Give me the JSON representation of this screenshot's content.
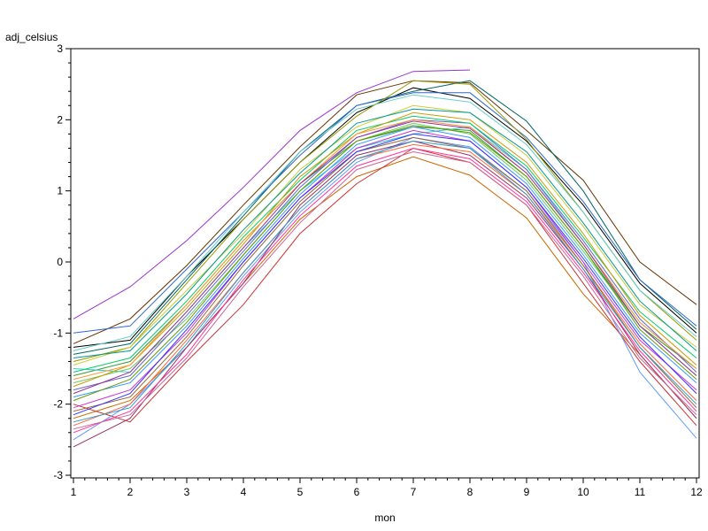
{
  "chart_data": {
    "type": "line",
    "xlabel": "mon",
    "ylabel": "adj_celsius",
    "xlim": [
      1,
      12
    ],
    "ylim": [
      -3,
      3
    ],
    "xticks": [
      1,
      2,
      3,
      4,
      5,
      6,
      7,
      8,
      9,
      10,
      11,
      12
    ],
    "yticks": [
      -3,
      -2,
      -1,
      0,
      1,
      2,
      3
    ],
    "grid": false,
    "legend": "none",
    "x": [
      1,
      2,
      3,
      4,
      5,
      6,
      7,
      8,
      9,
      10,
      11,
      12
    ],
    "series": [
      {
        "color": "#9933cc",
        "values": [
          -0.8,
          -0.35,
          0.3,
          1.05,
          1.85,
          2.38,
          2.68,
          2.7,
          null,
          null,
          null,
          null
        ]
      },
      {
        "color": "#663300",
        "values": [
          -1.15,
          -0.8,
          -0.05,
          0.8,
          1.62,
          2.35,
          2.55,
          2.52,
          1.85,
          1.15,
          0.0,
          -0.6
        ]
      },
      {
        "color": "#000000",
        "values": [
          -1.2,
          -1.1,
          -0.2,
          0.6,
          1.4,
          2.1,
          2.45,
          2.3,
          1.7,
          0.8,
          -0.3,
          -1.0
        ]
      },
      {
        "color": "#006666",
        "values": [
          -1.3,
          -1.15,
          -0.25,
          0.65,
          1.55,
          2.2,
          2.4,
          2.55,
          1.98,
          1.0,
          -0.25,
          -0.95
        ]
      },
      {
        "color": "#3366cc",
        "values": [
          -1.0,
          -0.9,
          -0.1,
          0.7,
          1.5,
          2.2,
          2.38,
          2.38,
          1.75,
          0.85,
          -0.25,
          -0.9
        ]
      },
      {
        "color": "#999900",
        "values": [
          -1.4,
          -1.2,
          -0.3,
          0.6,
          1.4,
          2.05,
          2.55,
          2.5,
          1.72,
          0.7,
          -0.4,
          -1.1
        ]
      },
      {
        "color": "#cc6600",
        "values": [
          -2.2,
          -1.95,
          -1.2,
          -0.3,
          0.6,
          1.2,
          1.48,
          1.22,
          0.62,
          -0.45,
          -1.3,
          -2.2
        ]
      },
      {
        "color": "#cc3333",
        "values": [
          -2.0,
          -2.25,
          -1.4,
          -0.6,
          0.4,
          1.1,
          1.6,
          1.4,
          0.8,
          -0.3,
          -1.4,
          -2.3
        ]
      },
      {
        "color": "#339933",
        "values": [
          -1.6,
          -1.4,
          -0.6,
          0.3,
          1.1,
          1.7,
          1.9,
          1.85,
          1.2,
          0.2,
          -0.9,
          -1.5
        ]
      },
      {
        "color": "#6699ff",
        "values": [
          -2.5,
          -2.0,
          -1.2,
          -0.2,
          0.7,
          1.4,
          1.75,
          1.62,
          1.0,
          0.0,
          -1.55,
          -2.48
        ]
      },
      {
        "color": "#993366",
        "values": [
          -2.6,
          -2.2,
          -1.2,
          -0.3,
          0.8,
          1.5,
          1.7,
          1.5,
          0.9,
          -0.1,
          -1.3,
          -2.2
        ]
      },
      {
        "color": "#33cccc",
        "values": [
          -1.5,
          -1.55,
          -0.7,
          0.2,
          1.0,
          1.6,
          1.8,
          1.9,
          1.3,
          0.25,
          -0.85,
          -1.5
        ]
      },
      {
        "color": "#cccc33",
        "values": [
          -1.45,
          -1.2,
          -0.4,
          0.4,
          1.3,
          1.9,
          2.2,
          2.1,
          1.5,
          0.5,
          -0.6,
          -1.2
        ]
      },
      {
        "color": "#66cc66",
        "values": [
          -1.7,
          -1.5,
          -0.8,
          0.1,
          1.0,
          1.7,
          1.95,
          1.8,
          1.15,
          0.15,
          -0.9,
          -1.6
        ]
      },
      {
        "color": "#cc33cc",
        "values": [
          -2.05,
          -1.8,
          -1.0,
          0.0,
          0.9,
          1.6,
          1.85,
          1.7,
          1.05,
          0.0,
          -1.1,
          -1.8
        ]
      },
      {
        "color": "#3399ff",
        "values": [
          -1.9,
          -1.7,
          -0.9,
          0.05,
          0.95,
          1.65,
          1.9,
          1.75,
          1.1,
          0.1,
          -1.0,
          -1.7
        ]
      },
      {
        "color": "#ff6633",
        "values": [
          -2.3,
          -2.0,
          -1.1,
          -0.15,
          0.75,
          1.45,
          1.65,
          1.55,
          0.95,
          -0.05,
          -1.15,
          -1.95
        ]
      },
      {
        "color": "#009999",
        "values": [
          -1.35,
          -1.25,
          -0.45,
          0.45,
          1.25,
          1.95,
          2.15,
          2.1,
          1.55,
          0.55,
          -0.55,
          -1.25
        ]
      },
      {
        "color": "#996633",
        "values": [
          -2.1,
          -1.9,
          -1.05,
          -0.05,
          0.85,
          1.55,
          1.75,
          1.6,
          1.0,
          -0.05,
          -1.2,
          -2.05
        ]
      },
      {
        "color": "#6666cc",
        "values": [
          -1.8,
          -1.6,
          -0.75,
          0.15,
          1.05,
          1.75,
          2.0,
          1.95,
          1.3,
          0.3,
          -0.8,
          -1.55
        ]
      },
      {
        "color": "#ff3399",
        "values": [
          -2.4,
          -2.1,
          -1.3,
          -0.25,
          0.65,
          1.35,
          1.6,
          1.45,
          0.85,
          -0.15,
          -1.25,
          -2.1
        ]
      },
      {
        "color": "#00cc66",
        "values": [
          -1.55,
          -1.35,
          -0.55,
          0.35,
          1.15,
          1.85,
          2.05,
          1.95,
          1.35,
          0.35,
          -0.7,
          -1.35
        ]
      },
      {
        "color": "#cc9900",
        "values": [
          -1.75,
          -1.45,
          -0.65,
          0.25,
          1.2,
          1.8,
          2.1,
          2.0,
          1.4,
          0.4,
          -0.75,
          -1.45
        ]
      },
      {
        "color": "#3333ff",
        "values": [
          -2.15,
          -1.85,
          -0.95,
          0.0,
          0.9,
          1.55,
          1.8,
          1.7,
          1.05,
          0.05,
          -1.05,
          -1.85
        ]
      },
      {
        "color": "#66cccc",
        "values": [
          -1.25,
          -1.05,
          -0.2,
          0.7,
          1.55,
          2.15,
          2.35,
          2.25,
          1.65,
          0.7,
          -0.4,
          -1.05
        ]
      },
      {
        "color": "#cc6699",
        "values": [
          -2.35,
          -2.15,
          -1.35,
          -0.35,
          0.55,
          1.3,
          1.55,
          1.4,
          0.8,
          -0.2,
          -1.35,
          -2.15
        ]
      },
      {
        "color": "#669900",
        "values": [
          -1.95,
          -1.65,
          -0.85,
          0.1,
          1.0,
          1.7,
          1.92,
          1.82,
          1.2,
          0.2,
          -0.95,
          -1.65
        ]
      },
      {
        "color": "#ff9933",
        "values": [
          -1.65,
          -1.45,
          -0.6,
          0.3,
          1.1,
          1.8,
          2.0,
          1.9,
          1.25,
          0.25,
          -0.85,
          -1.5
        ]
      },
      {
        "color": "#3399cc",
        "values": [
          -2.25,
          -2.05,
          -1.15,
          -0.15,
          0.75,
          1.45,
          1.7,
          1.6,
          0.95,
          -0.1,
          -1.2,
          -2.0
        ]
      },
      {
        "color": "#993399",
        "values": [
          -1.85,
          -1.55,
          -0.7,
          0.2,
          1.1,
          1.75,
          1.98,
          1.88,
          1.25,
          0.25,
          -0.9,
          -1.6
        ]
      }
    ]
  }
}
